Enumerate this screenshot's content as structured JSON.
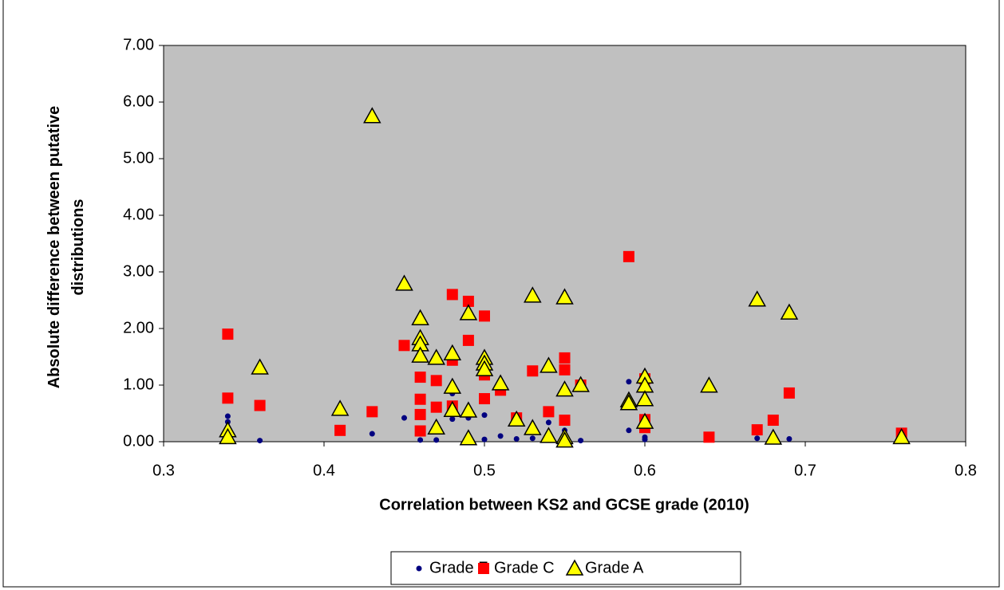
{
  "chart_data": {
    "type": "scatter",
    "xlabel": "Correlation between KS2 and GCSE grade (2010)",
    "ylabel": "Absolute difference between putative distributions",
    "xlim": [
      0.3,
      0.8
    ],
    "xticks": [
      0.3,
      0.4,
      0.5,
      0.6,
      0.7,
      0.8
    ],
    "ylim": [
      0,
      7
    ],
    "yticks": [
      {
        "value": 0,
        "label": "0.00"
      },
      {
        "value": 1,
        "label": "1.00"
      },
      {
        "value": 2,
        "label": "2.00"
      },
      {
        "value": 3,
        "label": "3.00"
      },
      {
        "value": 4,
        "label": "4.00"
      },
      {
        "value": 5,
        "label": "5.00"
      },
      {
        "value": 6,
        "label": "6.00"
      },
      {
        "value": 7,
        "label": "7.00"
      }
    ],
    "grid": false,
    "legend": "bottom",
    "series": [
      {
        "name": "Grade F",
        "color": "#000080",
        "marker": "circle",
        "x": [
          0.34,
          0.34,
          0.36,
          0.43,
          0.45,
          0.46,
          0.47,
          0.48,
          0.48,
          0.49,
          0.5,
          0.5,
          0.51,
          0.52,
          0.53,
          0.54,
          0.55,
          0.56,
          0.59,
          0.59,
          0.6,
          0.6,
          0.67,
          0.69
        ],
        "values": [
          0.45,
          0.35,
          0.02,
          0.14,
          0.42,
          0.03,
          0.03,
          0.85,
          0.4,
          0.42,
          0.47,
          0.04,
          0.1,
          0.05,
          0.06,
          0.34,
          0.2,
          0.02,
          1.06,
          0.2,
          0.08,
          0.04,
          0.06,
          0.05
        ]
      },
      {
        "name": "Grade C",
        "color": "#ff0000",
        "marker": "square",
        "x": [
          0.34,
          0.34,
          0.36,
          0.41,
          0.43,
          0.45,
          0.46,
          0.46,
          0.46,
          0.46,
          0.47,
          0.47,
          0.48,
          0.48,
          0.48,
          0.49,
          0.49,
          0.5,
          0.5,
          0.5,
          0.51,
          0.52,
          0.53,
          0.54,
          0.55,
          0.55,
          0.55,
          0.56,
          0.59,
          0.6,
          0.6,
          0.6,
          0.64,
          0.67,
          0.68,
          0.69,
          0.76
        ],
        "values": [
          1.9,
          0.77,
          0.64,
          0.2,
          0.53,
          1.7,
          1.14,
          0.75,
          0.48,
          0.19,
          1.08,
          0.61,
          2.6,
          1.44,
          0.63,
          2.48,
          1.79,
          2.22,
          1.18,
          0.76,
          0.91,
          0.42,
          1.25,
          0.53,
          1.48,
          1.27,
          0.38,
          1.0,
          3.27,
          1.11,
          0.39,
          0.25,
          0.08,
          0.21,
          0.38,
          0.86,
          0.15
        ]
      },
      {
        "name": "Grade A",
        "color": "#ffff00",
        "marker": "triangle",
        "x": [
          0.34,
          0.34,
          0.36,
          0.41,
          0.43,
          0.45,
          0.46,
          0.46,
          0.46,
          0.46,
          0.47,
          0.47,
          0.48,
          0.48,
          0.48,
          0.49,
          0.49,
          0.49,
          0.5,
          0.5,
          0.5,
          0.51,
          0.52,
          0.53,
          0.53,
          0.54,
          0.54,
          0.55,
          0.55,
          0.55,
          0.55,
          0.56,
          0.59,
          0.59,
          0.6,
          0.6,
          0.6,
          0.6,
          0.64,
          0.67,
          0.68,
          0.69,
          0.76
        ],
        "values": [
          0.2,
          0.08,
          1.31,
          0.58,
          5.75,
          2.79,
          2.18,
          1.83,
          1.72,
          1.52,
          1.48,
          0.25,
          1.56,
          0.97,
          0.56,
          2.27,
          0.55,
          0.06,
          1.48,
          1.38,
          1.28,
          1.03,
          0.39,
          2.58,
          0.24,
          1.34,
          0.1,
          2.55,
          0.92,
          0.08,
          0.02,
          1.0,
          0.73,
          0.68,
          1.15,
          0.99,
          0.75,
          0.35,
          0.99,
          2.51,
          0.07,
          2.28,
          0.08
        ]
      }
    ]
  }
}
